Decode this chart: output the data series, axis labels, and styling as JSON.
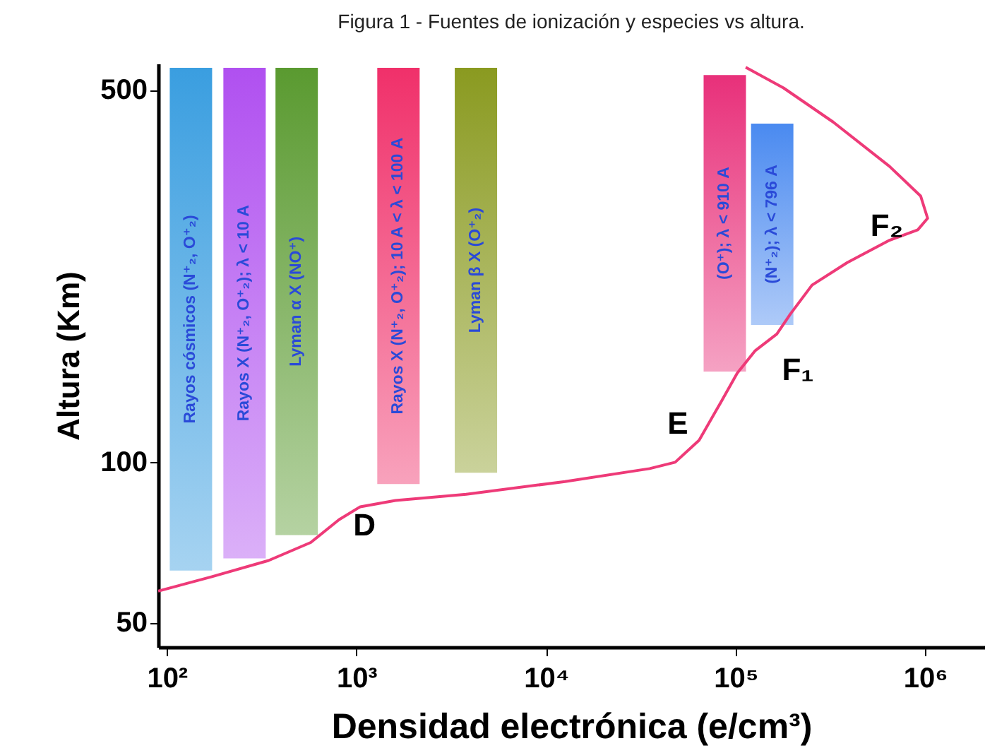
{
  "chart_data": {
    "type": "line",
    "title": "Figura 1 - Fuentes de ionización y especies vs altura.",
    "xlabel": "Densidad electrónica (e/cm³)",
    "ylabel": "Altura (Km)",
    "log": "xy",
    "xlim": [
      90,
      2050000
    ],
    "ylim": [
      45,
      560
    ],
    "xticks": [
      {
        "value": 100,
        "label": "10²"
      },
      {
        "value": 1000,
        "label": "10³"
      },
      {
        "value": 10000,
        "label": "10⁴"
      },
      {
        "value": 100000,
        "label": "10⁵"
      },
      {
        "value": 1000000,
        "label": "10⁶"
      }
    ],
    "yticks": [
      50,
      100,
      500
    ],
    "marker": "none",
    "line_style": "solid",
    "series": [
      {
        "color": "#ee3a78",
        "x": [
          90,
          173,
          344,
          574,
          809,
          1047,
          1607,
          3790,
          12600,
          35200,
          48000,
          64200,
          83000,
          102000,
          127000,
          165000,
          195000,
          253000,
          388000,
          649000,
          914000,
          1030000,
          946000,
          649000,
          327000,
          179000,
          113000
        ],
        "values": [
          57.3,
          61,
          65.4,
          70.7,
          78,
          82.5,
          84.8,
          87.1,
          92,
          97.3,
          100,
          110,
          129,
          147,
          162,
          174,
          190,
          215,
          237,
          261,
          273,
          287,
          316,
          359,
          435,
          504,
          551
        ]
      },
      {
        "type": "bar",
        "colors": [
          "#3a9ee0",
          "#b050f0",
          "#5a9a30",
          "#f0306a",
          "#8a9a20",
          "#e8307a",
          "#4a8af0"
        ],
        "x": [
          134,
          257,
          484,
          1666,
          4270,
          87700,
          156000
        ],
        "base": [
          62.6,
          66,
          73,
          91,
          95.6,
          148,
          181
        ],
        "values": [
          487.4,
          484,
          477,
          459,
          454.4,
          385,
          251
        ]
      }
    ],
    "annotations": [
      "Rayos cósmicos (N⁺₂, O⁺₂)",
      "Rayos X (N⁺₂, O⁺₂); λ < 10 A",
      "Lyman α X (NO⁺)",
      "Rayos X (N⁺₂, O⁺₂); 10 A < λ < 100 A",
      "Lyman β X (O⁺₂)",
      "(O⁺); λ < 910 A",
      "(N⁺₂); λ < 796 A",
      "D",
      "E",
      "F₁",
      "F₂"
    ]
  }
}
